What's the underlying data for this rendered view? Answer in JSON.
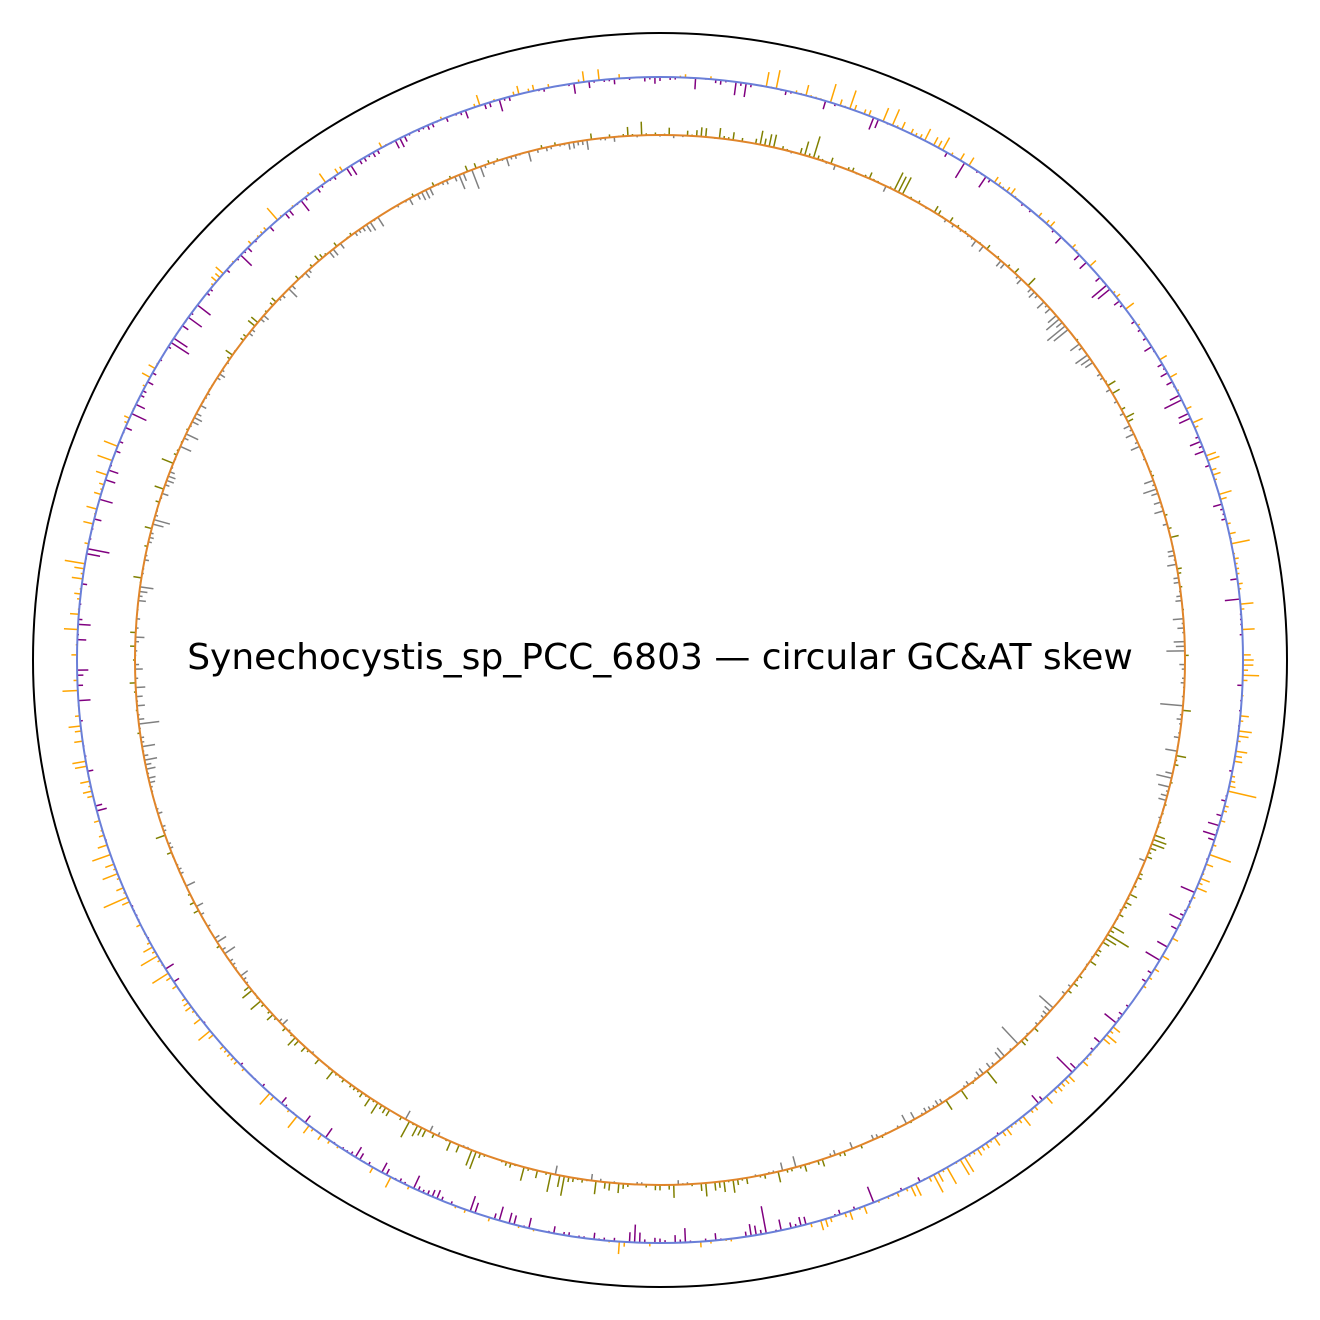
{
  "chart_data": {
    "type": "circular-skew",
    "title": "Synechocystis_sp_PCC_6803 — circular GC&AT skew",
    "organism": "Synechocystis_sp_PCC_6803",
    "tracks": [
      {
        "name": "GC skew",
        "ring": "outer",
        "positive_color": "#FFA500",
        "negative_color": "#800080",
        "baseline_color": "#6A7FD8",
        "value_range": [
          -0.35,
          0.35
        ],
        "bins": 720,
        "profile": {
          "mean": 0.0,
          "amplitude": 0.18,
          "dense_positive_angles_deg": [
            20,
            80,
            100,
            150,
            230,
            250
          ],
          "dense_negative_angles_deg": [
            0,
            60,
            170,
            200,
            300,
            330
          ]
        }
      },
      {
        "name": "AT skew",
        "ring": "inner",
        "positive_color": "#808000",
        "negative_color": "#808080",
        "baseline_color": "#E0852A",
        "value_range": [
          -0.35,
          0.35
        ],
        "bins": 720,
        "profile": {
          "mean": 0.0,
          "amplitude": 0.16,
          "dense_positive_angles_deg": [
            10,
            30,
            120,
            175,
            190,
            215
          ],
          "dense_negative_angles_deg": [
            50,
            90,
            140,
            260,
            290,
            340
          ]
        }
      }
    ],
    "frame": "circle",
    "grid": false,
    "legend": "none"
  },
  "colors": {
    "frame": "#000000",
    "background": "#FFFFFF"
  }
}
